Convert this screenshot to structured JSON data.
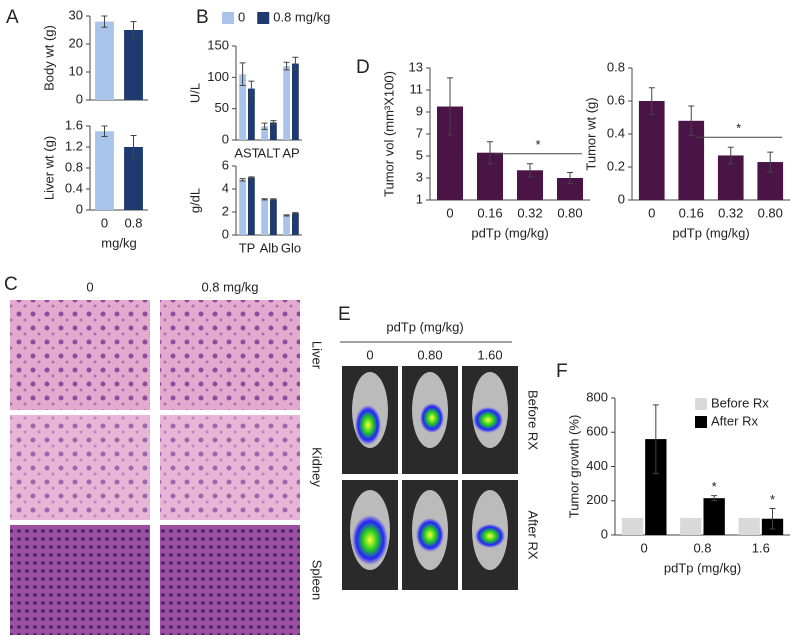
{
  "panel_labels": [
    "A",
    "B",
    "C",
    "D",
    "E",
    "F"
  ],
  "histology": {
    "columns": [
      "0",
      "0.8 mg/kg"
    ],
    "rows": [
      "Liver",
      "Kidney",
      "Spleen"
    ]
  },
  "imaging": {
    "title": "pdTp (mg/kg)",
    "columns": [
      "0",
      "0.80",
      "1.60"
    ],
    "rows": [
      "Before RX",
      "After RX"
    ]
  },
  "chart_data": [
    {
      "type": "bar",
      "ylabel": "Body wt (g)",
      "categories": [
        null,
        null
      ],
      "values": [
        28,
        25
      ],
      "errors": [
        2,
        3
      ],
      "colors": [
        "#a9c4ea",
        "#1f3a6e"
      ],
      "ylim": [
        0,
        30
      ],
      "yticks": [
        0,
        10,
        20,
        30
      ]
    },
    {
      "type": "bar",
      "ylabel": "Liver wt (g)",
      "xlabel": "mg/kg",
      "categories": [
        "0",
        "0.8"
      ],
      "values": [
        1.5,
        1.2
      ],
      "errors": [
        0.1,
        0.22
      ],
      "colors": [
        "#a9c4ea",
        "#1f3a6e"
      ],
      "ylim": [
        0,
        1.6
      ],
      "yticks": [
        0,
        0.4,
        0.8,
        1.2,
        1.6
      ]
    },
    {
      "type": "bar",
      "ylabel": "U/L",
      "categories": [
        "AST",
        "ALT",
        "AP"
      ],
      "legend": "top",
      "series": [
        {
          "name": "0",
          "color": "#a9c4ea",
          "values": [
            105,
            22,
            118
          ],
          "errors": [
            18,
            5,
            6
          ]
        },
        {
          "name": "0.8 mg/kg",
          "color": "#1f3a6e",
          "values": [
            82,
            28,
            122
          ],
          "errors": [
            12,
            3,
            10
          ]
        }
      ],
      "ylim": [
        0,
        150
      ],
      "yticks": [
        0,
        50,
        100,
        150
      ]
    },
    {
      "type": "bar",
      "ylabel": "g/dL",
      "categories": [
        "TP",
        "Alb",
        "Glo"
      ],
      "series": [
        {
          "color": "#a9c4ea",
          "values": [
            4.8,
            3.1,
            1.7
          ],
          "errors": [
            0.1,
            0.05,
            0.05
          ]
        },
        {
          "color": "#1f3a6e",
          "values": [
            5.0,
            3.1,
            1.9
          ],
          "errors": [
            0.05,
            0.05,
            0.05
          ]
        }
      ],
      "ylim": [
        0,
        6
      ],
      "yticks": [
        0,
        2,
        4,
        6
      ]
    },
    {
      "type": "bar",
      "ylabel": "Tumor vol (mm³X100)",
      "xlabel": "pdTp (mg/kg)",
      "categories": [
        "0",
        "0.16",
        "0.32",
        "0.80"
      ],
      "values": [
        9.5,
        5.3,
        3.7,
        3.0
      ],
      "errors": [
        2.6,
        1.0,
        0.6,
        0.5
      ],
      "color": "#4a1546",
      "annotation": "*",
      "ylim": [
        1,
        13
      ],
      "yticks": [
        1,
        3,
        5,
        7,
        9,
        11,
        13
      ]
    },
    {
      "type": "bar",
      "ylabel": "Tumor wt (g)",
      "xlabel": "pdTp (mg/kg)",
      "categories": [
        "0",
        "0.16",
        "0.32",
        "0.80"
      ],
      "values": [
        0.6,
        0.48,
        0.27,
        0.23
      ],
      "errors": [
        0.08,
        0.09,
        0.05,
        0.06
      ],
      "color": "#4a1546",
      "annotation": "*",
      "ylim": [
        0,
        0.8
      ],
      "yticks": [
        0,
        0.2,
        0.4,
        0.6,
        0.8
      ]
    },
    {
      "type": "bar",
      "ylabel": "Tumor growth (%)",
      "xlabel": "pdTp (mg/kg)",
      "categories": [
        "0",
        "0.8",
        "1.6"
      ],
      "legend": "upper right",
      "significance": [
        null,
        "*",
        "*"
      ],
      "series": [
        {
          "name": "Before Rx",
          "color": "#d9d9d9",
          "values": [
            100,
            100,
            100
          ]
        },
        {
          "name": "After Rx",
          "color": "#000000",
          "values": [
            560,
            215,
            95
          ],
          "errors": [
            200,
            15,
            60
          ]
        }
      ],
      "ylim": [
        0,
        800
      ],
      "yticks": [
        0,
        200,
        400,
        600,
        800
      ]
    }
  ]
}
